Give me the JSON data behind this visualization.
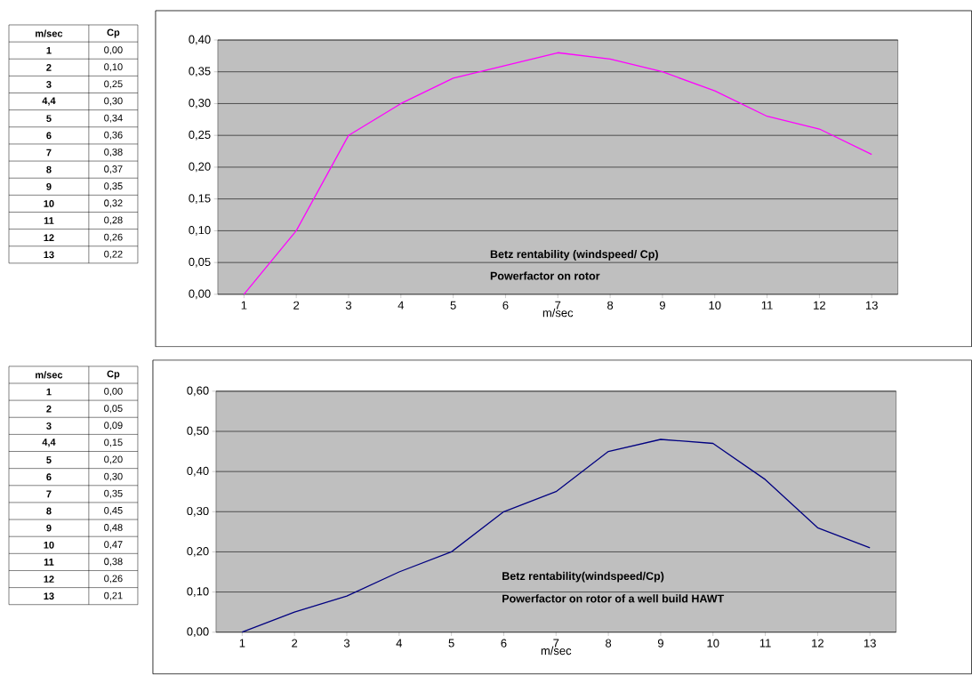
{
  "chart_data": [
    {
      "type": "line",
      "categories": [
        "1",
        "2",
        "3",
        "4",
        "5",
        "6",
        "7",
        "8",
        "9",
        "10",
        "11",
        "12",
        "13"
      ],
      "values": [
        0.0,
        0.1,
        0.25,
        0.3,
        0.34,
        0.36,
        0.38,
        0.37,
        0.35,
        0.32,
        0.28,
        0.26,
        0.22
      ],
      "color": "#ff00ff",
      "xlabel": "m/sec",
      "ylim": [
        0,
        0.4
      ],
      "yticks": [
        {
          "value": 0,
          "label": "0,00"
        },
        {
          "value": 0.05,
          "label": "0,05"
        },
        {
          "value": 0.1,
          "label": "0,10"
        },
        {
          "value": 0.15,
          "label": "0,15"
        },
        {
          "value": 0.2,
          "label": "0,20"
        },
        {
          "value": 0.25,
          "label": "0,25"
        },
        {
          "value": 0.3,
          "label": "0,30"
        },
        {
          "value": 0.35,
          "label": "0,35"
        },
        {
          "value": 0.4,
          "label": "0,40"
        }
      ],
      "grid": "y",
      "annotations": [
        "Betz rentability (windspeed/ Cp)",
        "Powerfactor on rotor",
        "m/sec",
        "Cp",
        "1",
        "2",
        "3",
        "4,4",
        "5",
        "6",
        "7",
        "8",
        "9",
        "10",
        "11",
        "12",
        "13",
        "0,00",
        "0,10",
        "0,25",
        "0,30",
        "0,34",
        "0,36",
        "0,38",
        "0,37",
        "0,35",
        "0,32",
        "0,28",
        "0,26",
        "0,22"
      ]
    },
    {
      "type": "line",
      "categories": [
        "1",
        "2",
        "3",
        "4",
        "5",
        "6",
        "7",
        "8",
        "9",
        "10",
        "11",
        "12",
        "13"
      ],
      "values": [
        0.0,
        0.05,
        0.09,
        0.15,
        0.2,
        0.3,
        0.35,
        0.45,
        0.48,
        0.47,
        0.38,
        0.26,
        0.21
      ],
      "color": "#000080",
      "xlabel": "m/sec",
      "ylim": [
        0,
        0.6
      ],
      "yticks": [
        {
          "value": 0,
          "label": "0,00"
        },
        {
          "value": 0.1,
          "label": "0,10"
        },
        {
          "value": 0.2,
          "label": "0,20"
        },
        {
          "value": 0.3,
          "label": "0,30"
        },
        {
          "value": 0.4,
          "label": "0,40"
        },
        {
          "value": 0.5,
          "label": "0,50"
        },
        {
          "value": 0.6,
          "label": "0,60"
        }
      ],
      "grid": "y",
      "annotations": [
        "Betz rentability(windspeed/Cp)",
        "Powerfactor on rotor of a well build HAWT",
        "m/sec",
        "Cp",
        "1",
        "2",
        "3",
        "4,4",
        "5",
        "6",
        "7",
        "8",
        "9",
        "10",
        "11",
        "12",
        "13",
        "0,00",
        "0,05",
        "0,09",
        "0,15",
        "0,20",
        "0,30",
        "0,35",
        "0,45",
        "0,48",
        "0,47",
        "0,38",
        "0,26",
        "0,21"
      ]
    }
  ]
}
